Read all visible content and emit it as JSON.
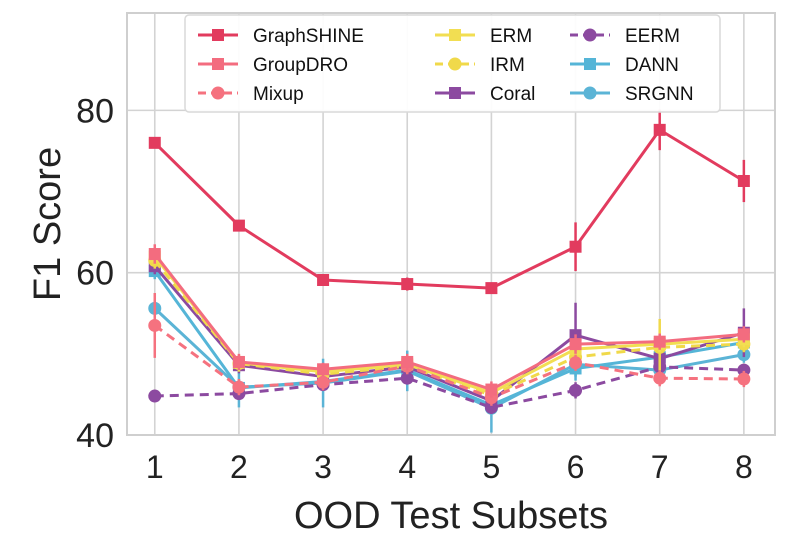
{
  "chart_data": {
    "type": "line",
    "title": "",
    "xlabel": "OOD Test Subsets",
    "ylabel": "F1 Score",
    "x": [
      1,
      2,
      3,
      4,
      5,
      6,
      7,
      8
    ],
    "x_tick_labels": [
      "1",
      "2",
      "3",
      "4",
      "5",
      "6",
      "7",
      "8"
    ],
    "xlim": [
      0.67,
      8.37
    ],
    "ylim": [
      40,
      92
    ],
    "y_ticks": [
      40,
      60,
      80
    ],
    "y_tick_labels": [
      "40",
      "60",
      "80"
    ],
    "grid": true,
    "legend_position": "top",
    "legend_columns": 3,
    "series": [
      {
        "name": "GraphSHINE",
        "color": "#e23b5e",
        "marker": "square",
        "dashed": false,
        "values": [
          76.0,
          65.8,
          59.1,
          58.6,
          58.1,
          63.2,
          77.6,
          71.3
        ],
        "errors": [
          0.6,
          0.6,
          0.6,
          0.8,
          0.6,
          3.0,
          2.5,
          2.6
        ]
      },
      {
        "name": "GroupDRO",
        "color": "#f36c7f",
        "marker": "square",
        "dashed": false,
        "values": [
          62.3,
          49.0,
          48.1,
          49.0,
          45.6,
          51.2,
          51.5,
          52.4
        ],
        "errors": [
          1.2,
          1.0,
          0.8,
          1.0,
          1.0,
          1.2,
          1.0,
          1.0
        ]
      },
      {
        "name": "Mixup",
        "color": "#f5727f",
        "marker": "circle",
        "dashed": true,
        "values": [
          53.5,
          45.9,
          46.5,
          48.5,
          44.6,
          48.9,
          47.0,
          46.9
        ],
        "errors": [
          4.0,
          1.0,
          1.0,
          1.0,
          1.0,
          1.0,
          1.0,
          1.0
        ]
      },
      {
        "name": "ERM",
        "color": "#f2de52",
        "marker": "square",
        "dashed": false,
        "values": [
          62.0,
          48.9,
          47.8,
          48.7,
          45.2,
          50.6,
          51.2,
          51.8
        ],
        "errors": [
          1.0,
          1.0,
          0.8,
          1.0,
          1.0,
          1.0,
          1.0,
          1.0
        ]
      },
      {
        "name": "IRM",
        "color": "#f0d94a",
        "marker": "circle",
        "dashed": true,
        "values": [
          61.5,
          48.8,
          47.5,
          48.5,
          44.9,
          49.6,
          50.8,
          51.2
        ],
        "errors": [
          1.0,
          1.0,
          0.8,
          1.0,
          1.0,
          1.0,
          3.5,
          1.0
        ]
      },
      {
        "name": "Coral",
        "color": "#8c4aa0",
        "marker": "square",
        "dashed": false,
        "values": [
          60.8,
          48.6,
          47.2,
          48.4,
          44.2,
          52.3,
          49.4,
          52.6
        ],
        "errors": [
          1.0,
          1.0,
          0.8,
          1.0,
          1.0,
          4.0,
          1.5,
          3.0
        ]
      },
      {
        "name": "EERM",
        "color": "#8c4aa0",
        "marker": "circle",
        "dashed": true,
        "values": [
          44.8,
          45.1,
          46.2,
          47.0,
          43.4,
          45.5,
          48.4,
          48.0
        ],
        "errors": [
          0.5,
          0.6,
          0.6,
          0.6,
          0.8,
          1.0,
          0.8,
          0.6
        ]
      },
      {
        "name": "DANN",
        "color": "#55b5d7",
        "marker": "square",
        "dashed": false,
        "values": [
          60.2,
          45.8,
          46.6,
          48.0,
          43.7,
          48.2,
          49.6,
          51.4
        ],
        "errors": [
          1.0,
          1.0,
          0.8,
          1.0,
          1.0,
          1.0,
          1.0,
          1.0
        ]
      },
      {
        "name": "SRGNN",
        "color": "#5bb4d6",
        "marker": "circle",
        "dashed": false,
        "values": [
          55.6,
          45.9,
          46.4,
          47.9,
          43.3,
          48.7,
          48.0,
          49.9
        ],
        "errors": [
          1.0,
          2.5,
          3.0,
          2.5,
          3.0,
          2.0,
          1.0,
          1.0
        ]
      }
    ]
  },
  "style": {
    "background": "#ffffff",
    "grid_color": "#d3d3d3",
    "frame_color": "#cfcfcf",
    "text_color": "#222222",
    "legend_border": "#d9d9d9"
  }
}
